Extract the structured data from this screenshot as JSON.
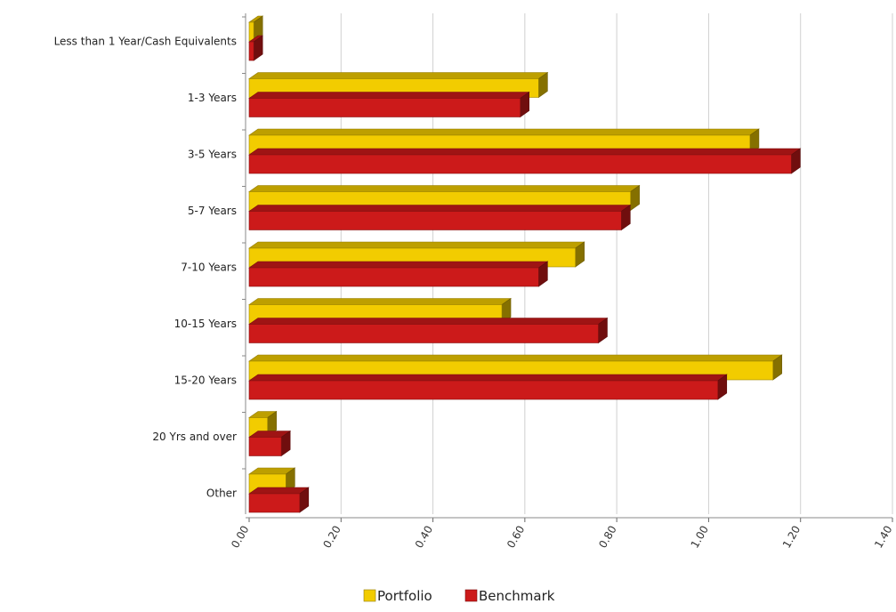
{
  "chart_data": {
    "type": "bar",
    "orientation": "horizontal",
    "style": "3d",
    "categories": [
      "Less than 1 Year/Cash Equivalents",
      "1-3 Years",
      "3-5 Years",
      "5-7 Years",
      "7-10 Years",
      "10-15 Years",
      "15-20 Years",
      "20 Yrs and over",
      "Other"
    ],
    "series": [
      {
        "name": "Portfolio",
        "color": "#f2cc00",
        "values": [
          0.01,
          0.63,
          1.09,
          0.83,
          0.71,
          0.55,
          1.14,
          0.04,
          0.08
        ]
      },
      {
        "name": "Benchmark",
        "color": "#cc1a1a",
        "values": [
          0.01,
          0.59,
          1.18,
          0.81,
          0.63,
          0.76,
          1.02,
          0.07,
          0.11
        ]
      }
    ],
    "xlim": [
      0,
      1.4
    ],
    "xticks": [
      "0.00",
      "0.20",
      "0.40",
      "0.60",
      "0.80",
      "1.00",
      "1.20",
      "1.40"
    ],
    "grid": true,
    "legend_position": "bottom-center",
    "title": "",
    "xlabel": "",
    "ylabel": ""
  }
}
